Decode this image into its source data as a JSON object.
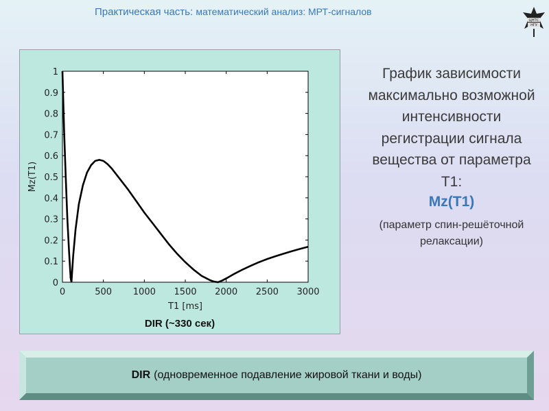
{
  "header": {
    "title_main": "Практическая часть:",
    "title_sub": "математический анализ: МРТ-сигналов"
  },
  "logo": {
    "icon": "university-crest-icon",
    "text_top": "ЦНТС",
    "text_bottom": "НГУ"
  },
  "chart_panel": {
    "caption": "DIR (~330 сек)"
  },
  "chart_data": {
    "type": "line",
    "xlabel": "T1 [ms]",
    "ylabel": "Mz(T1)",
    "xlim": [
      0,
      3000
    ],
    "ylim": [
      0,
      1
    ],
    "x_ticks": [
      "0",
      "500",
      "1000",
      "1500",
      "2000",
      "2500",
      "3000"
    ],
    "y_ticks": [
      "0",
      "0.1",
      "0.2",
      "0.3",
      "0.4",
      "0.5",
      "0.6",
      "0.7",
      "0.8",
      "0.9",
      "1"
    ],
    "grid": false,
    "series": [
      {
        "x": [
          0,
          20,
          40,
          60,
          80,
          100,
          110,
          130,
          160,
          200,
          250,
          300,
          350,
          400,
          450,
          500,
          550,
          600,
          700,
          800,
          900,
          1000,
          1100,
          1200,
          1300,
          1400,
          1500,
          1600,
          1700,
          1800,
          1850,
          1900,
          1950,
          2000,
          2100,
          2200,
          2300,
          2400,
          2500,
          2600,
          2700,
          2800,
          2900,
          3000
        ],
        "y": [
          1.0,
          0.72,
          0.5,
          0.3,
          0.15,
          0.02,
          0.0,
          0.12,
          0.25,
          0.37,
          0.46,
          0.52,
          0.555,
          0.575,
          0.58,
          0.575,
          0.56,
          0.54,
          0.49,
          0.44,
          0.385,
          0.33,
          0.28,
          0.23,
          0.18,
          0.135,
          0.095,
          0.06,
          0.03,
          0.01,
          0.003,
          0.0,
          0.008,
          0.018,
          0.04,
          0.06,
          0.078,
          0.095,
          0.11,
          0.123,
          0.135,
          0.147,
          0.158,
          0.168
        ]
      }
    ]
  },
  "description": {
    "title": "График зависимости максимально возможной интенсивности регистрации сигнала вещества от параметра Т1:",
    "highlight": "Mz(T1)",
    "note": "(параметр спин-решёточной релаксации)"
  },
  "bottom_box": {
    "label_bold": "DIR",
    "label_text": "(одновременное подавление жировой ткани и воды)"
  },
  "colors": {
    "accent": "#3878b8",
    "panel_bg": "#bde8e0",
    "box_bg": "#a3cfc6"
  }
}
